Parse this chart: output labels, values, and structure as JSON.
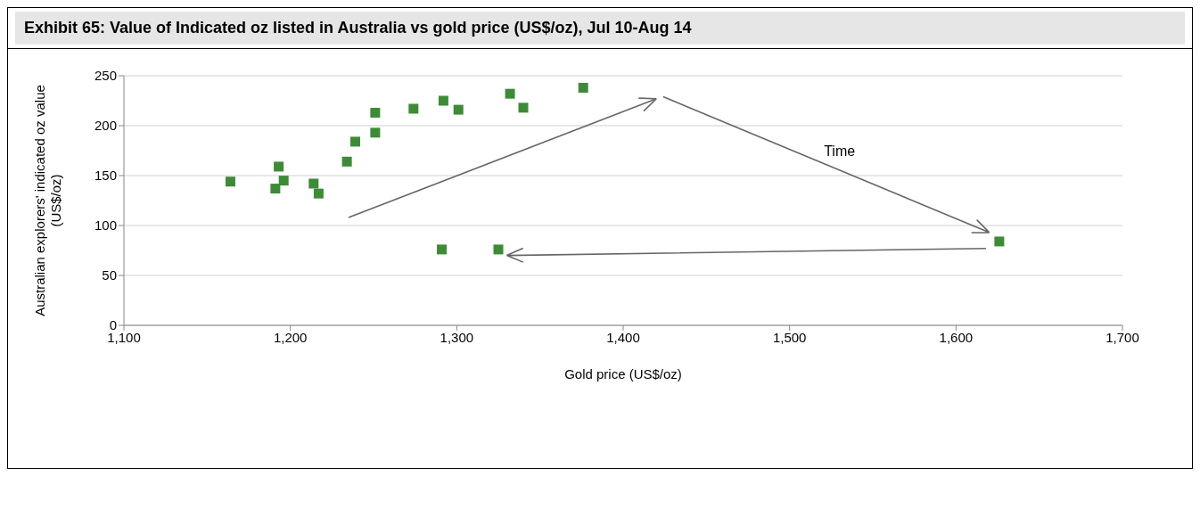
{
  "chart_data": {
    "type": "scatter",
    "title": "Exhibit 65: Value of Indicated oz listed in Australia vs gold price (US$/oz), Jul 10-Aug 14",
    "xlabel": "Gold price (US$/oz)",
    "ylabel": "Australian explorers' indicated oz value (US$/oz)",
    "annotations": [
      "Time"
    ],
    "x": [
      1164,
      1191,
      1193,
      1196,
      1213,
      1214,
      1217,
      1234,
      1239,
      1251,
      1251,
      1274,
      1292,
      1301,
      1332,
      1340,
      1376,
      1291,
      1325,
      1626
    ],
    "values": [
      144,
      137,
      159,
      145,
      null,
      142,
      132,
      164,
      184,
      213,
      193,
      217,
      225,
      216,
      232,
      218,
      238,
      76,
      76,
      84
    ],
    "color": "#3d8b37",
    "marker": "square",
    "xlim": [
      1100,
      1700
    ],
    "xticks": [
      {
        "value": 1100,
        "label": "1,100"
      },
      {
        "value": 1200,
        "label": "1,200"
      },
      {
        "value": 1300,
        "label": "1,300"
      },
      {
        "value": 1400,
        "label": "1,400"
      },
      {
        "value": 1500,
        "label": "1,500"
      },
      {
        "value": 1600,
        "label": "1,600"
      },
      {
        "value": 1700,
        "label": "1,700"
      }
    ],
    "ylim": [
      0,
      250
    ],
    "yticks": [
      0,
      50,
      100,
      150,
      200,
      250
    ],
    "grid": "y",
    "legend": false
  }
}
